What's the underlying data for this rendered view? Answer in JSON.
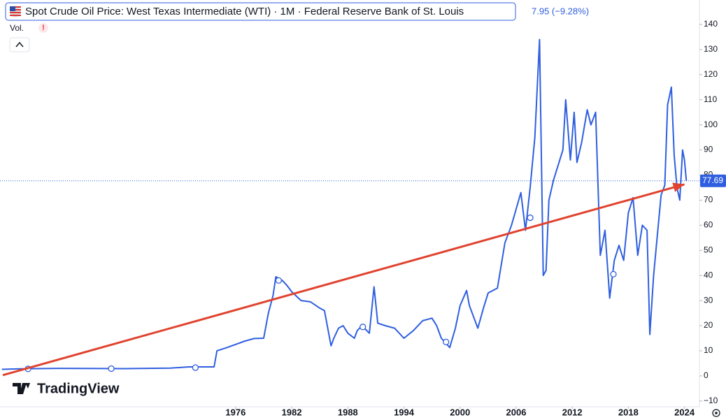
{
  "chart_data": {
    "type": "line",
    "title": "Spot Crude Oil Price: West Texas Intermediate (WTI) · 1M · Federal Reserve Bank of St. Louis",
    "change_text": "7.95 (−9.28%)",
    "volume_label": "Vol.",
    "brand": "TradingView",
    "series": [
      {
        "name": "WTI",
        "color": "#2f5fe0",
        "x": [
          1951,
          1953,
          1957,
          1960,
          1964,
          1969,
          1971,
          1973.7,
          1974,
          1974.1,
          1975,
          1977,
          1978,
          1979,
          1979.5,
          1980,
          1980.3,
          1981,
          1981.5,
          1982,
          1983,
          1984,
          1985,
          1985.5,
          1986.2,
          1986.5,
          1987,
          1987.5,
          1988,
          1988.7,
          1989,
          1989.5,
          1990.3,
          1990.8,
          1991.2,
          1992,
          1993,
          1994,
          1995,
          1996,
          1997,
          1997.5,
          1998,
          1998.9,
          1999.5,
          2000,
          2000.7,
          2001,
          2001.9,
          2002.5,
          2003,
          2004,
          2004.8,
          2005.5,
          2006.5,
          2007,
          2007.5,
          2008,
          2008.5,
          2008.9,
          2009.2,
          2009.5,
          2010,
          2011,
          2011.3,
          2011.8,
          2012.2,
          2012.5,
          2013,
          2013.6,
          2014,
          2014.5,
          2015,
          2015.5,
          2016,
          2016.5,
          2017,
          2017.5,
          2018,
          2018.5,
          2019,
          2019.5,
          2020,
          2020.3,
          2020.7,
          2021,
          2021.5,
          2021.9,
          2022.2,
          2022.6,
          2022.9,
          2023.2,
          2023.5,
          2023.8,
          2024,
          2024.2
        ],
        "values": [
          2.6,
          2.8,
          3.0,
          2.97,
          2.9,
          3.1,
          3.6,
          3.6,
          10,
          10.1,
          11.2,
          13.9,
          14.9,
          15,
          25,
          32,
          39.5,
          38,
          36,
          33.5,
          30,
          29.5,
          27,
          26,
          12,
          15,
          19,
          20,
          17,
          15,
          18,
          20,
          17,
          35.5,
          21,
          20,
          19,
          15,
          18,
          22,
          23,
          20,
          15,
          11.3,
          19,
          28,
          34,
          28,
          19,
          27,
          33,
          35,
          53,
          60,
          73,
          58,
          75,
          95,
          134,
          40,
          42,
          70,
          78,
          90,
          110,
          86,
          105,
          85,
          93,
          106,
          100,
          105,
          48,
          58,
          31,
          46,
          52,
          46,
          65,
          71,
          48,
          60,
          58,
          16.5,
          40,
          52,
          72,
          76,
          108,
          115,
          88,
          75,
          70,
          90,
          86,
          77.69
        ]
      }
    ],
    "markers": {
      "x": [
        1953.8,
        1962.7,
        1971.7,
        1980.6,
        1989.6,
        1998.5,
        2007.5,
        2016.4
      ],
      "values": [
        2.8,
        2.9,
        3.3,
        38,
        19.5,
        13.5,
        63,
        40.5
      ]
    },
    "trendline": {
      "color": "#e0432f",
      "x": [
        1951.1,
        2024
      ],
      "values": [
        0.3,
        76.3
      ]
    },
    "xlim": [
      1950.8,
      2025.6
    ],
    "xticks": [
      1976,
      1982,
      1988,
      1994,
      2000,
      2006,
      2012,
      2018,
      2024
    ],
    "ylim": [
      -12,
      149
    ],
    "yticks": [
      {
        "value": -10,
        "label": "−10"
      },
      0,
      10,
      20,
      30,
      40,
      50,
      60,
      70,
      80,
      90,
      100,
      110,
      120,
      130,
      140
    ]
  }
}
